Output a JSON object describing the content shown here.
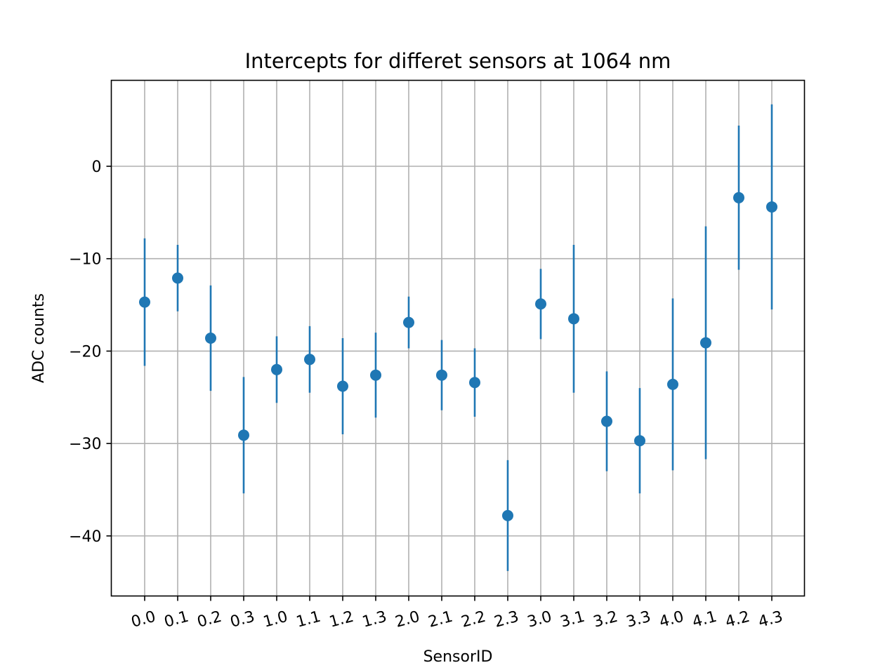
{
  "chart_data": {
    "type": "scatter",
    "title": "Intercepts for differet sensors at 1064 nm",
    "xlabel": "SensorID",
    "ylabel": "ADC counts",
    "categories": [
      "0.0",
      "0.1",
      "0.2",
      "0.3",
      "1.0",
      "1.1",
      "1.2",
      "1.3",
      "2.0",
      "2.1",
      "2.2",
      "2.3",
      "3.0",
      "3.1",
      "3.2",
      "3.3",
      "4.0",
      "4.1",
      "4.2",
      "4.3"
    ],
    "series": [
      {
        "values": [
          -14.7,
          -12.1,
          -18.6,
          -29.1,
          -22.0,
          -20.9,
          -23.8,
          -22.6,
          -16.9,
          -22.6,
          -23.4,
          -37.8,
          -14.9,
          -16.5,
          -27.6,
          -29.7,
          -23.6,
          -19.1,
          -3.4,
          -4.4
        ],
        "errors": [
          6.9,
          3.6,
          5.7,
          6.3,
          3.6,
          3.6,
          5.2,
          4.6,
          2.8,
          3.8,
          3.7,
          6.0,
          3.8,
          8.0,
          5.4,
          5.7,
          9.3,
          12.6,
          7.8,
          11.1
        ],
        "color": "#1f77b4"
      }
    ],
    "ylim": [
      -46.5,
      9.3
    ],
    "yticks": [
      0,
      -10,
      -20,
      -30,
      -40
    ],
    "ytick_labels": [
      "0",
      "−10",
      "−20",
      "−30",
      "−40"
    ],
    "grid": true,
    "xtick_rotation": 15
  }
}
